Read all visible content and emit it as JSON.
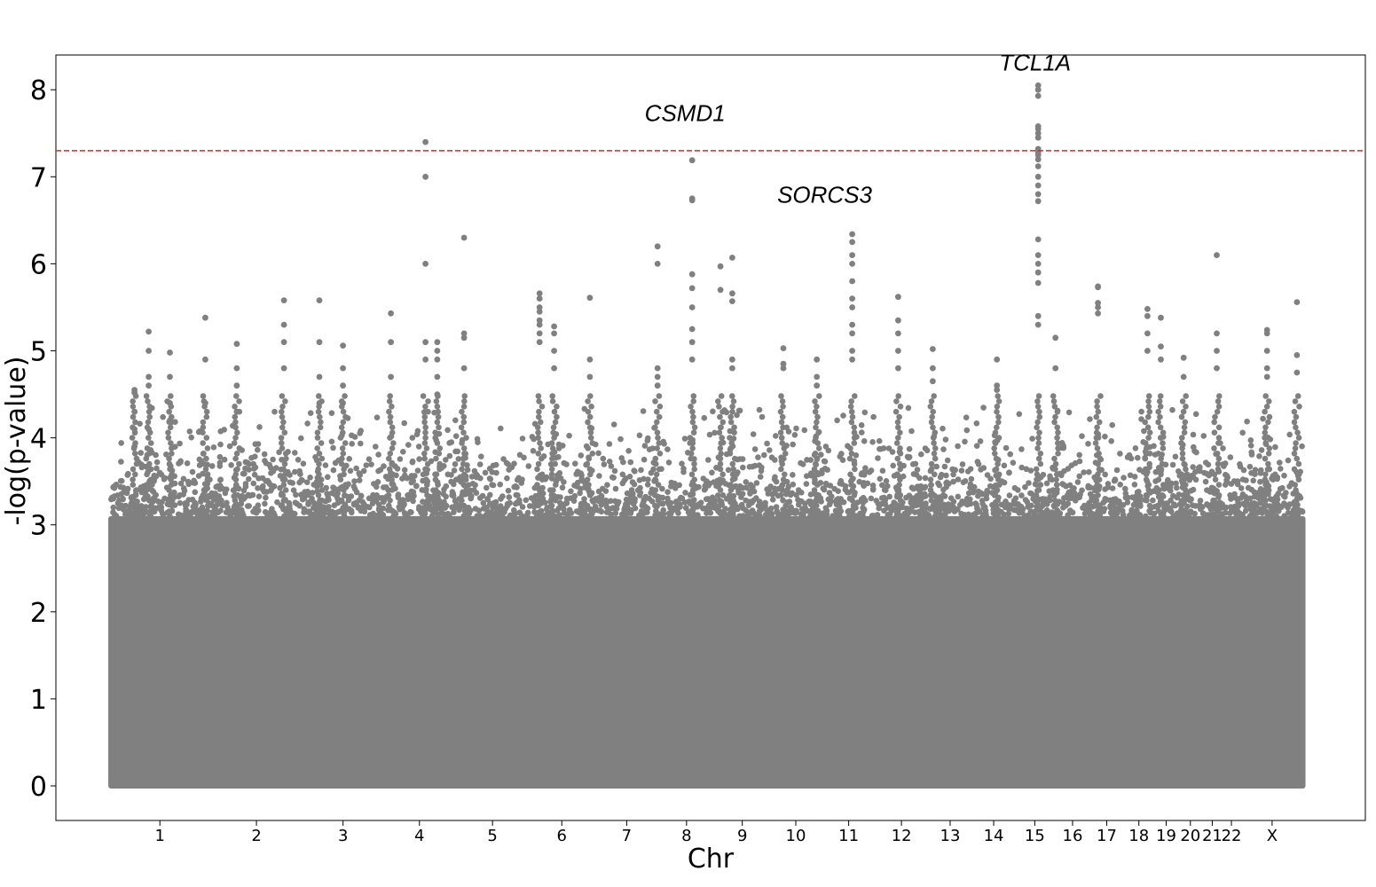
{
  "chart_data": {
    "type": "scatter",
    "subtype": "manhattan",
    "xlabel": "Chr",
    "ylabel": "-log(p-value)",
    "ylim": [
      0,
      8.4
    ],
    "yticks": [
      "0",
      "1",
      "2",
      "3",
      "4",
      "5",
      "6",
      "7",
      "8"
    ],
    "marker_color": "#808080",
    "threshold": {
      "value": 7.3,
      "color": "#d62728",
      "style": "dashed"
    },
    "background_band_top": 3.1,
    "chromosomes": [
      {
        "label": "1",
        "start": 0.0,
        "end": 248.9
      },
      {
        "label": "2",
        "start": 248.9,
        "end": 491.1
      },
      {
        "label": "3",
        "start": 491.1,
        "end": 689.4
      },
      {
        "label": "4",
        "start": 689.4,
        "end": 879.6
      },
      {
        "label": "5",
        "start": 879.6,
        "end": 1061.1
      },
      {
        "label": "6",
        "start": 1061.1,
        "end": 1231.9
      },
      {
        "label": "7",
        "start": 1231.9,
        "end": 1391.2
      },
      {
        "label": "8",
        "start": 1391.2,
        "end": 1536.3
      },
      {
        "label": "9",
        "start": 1536.3,
        "end": 1674.7
      },
      {
        "label": "10",
        "start": 1674.7,
        "end": 1808.5
      },
      {
        "label": "11",
        "start": 1808.5,
        "end": 1943.6
      },
      {
        "label": "12",
        "start": 1943.6,
        "end": 2076.9
      },
      {
        "label": "13",
        "start": 2076.9,
        "end": 2191.3
      },
      {
        "label": "14",
        "start": 2191.3,
        "end": 2298.3
      },
      {
        "label": "15",
        "start": 2298.3,
        "end": 2400.3
      },
      {
        "label": "16",
        "start": 2400.3,
        "end": 2490.6
      },
      {
        "label": "17",
        "start": 2490.6,
        "end": 2573.9
      },
      {
        "label": "18",
        "start": 2573.9,
        "end": 2654.2
      },
      {
        "label": "19",
        "start": 2654.2,
        "end": 2712.8
      },
      {
        "label": "20",
        "start": 2712.8,
        "end": 2777.3
      },
      {
        "label": "21",
        "start": 2777.3,
        "end": 2824.0
      },
      {
        "label": "22",
        "start": 2824.0,
        "end": 2874.8
      },
      {
        "label": "X",
        "start": 2874.8,
        "end": 3031.0
      }
    ],
    "xlim": [
      -140,
      3190
    ],
    "peaks": [
      {
        "x": 60,
        "y": [
          4.52,
          4.55,
          4.3,
          4.1,
          3.9
        ]
      },
      {
        "x": 96,
        "y": [
          5.22,
          5.0,
          4.7,
          4.6,
          4.1
        ]
      },
      {
        "x": 150,
        "y": [
          4.98,
          4.7,
          4.4,
          4.2
        ]
      },
      {
        "x": 240,
        "y": [
          5.38,
          4.9,
          4.4
        ]
      },
      {
        "x": 320,
        "y": [
          5.08,
          4.8,
          4.6,
          4.3
        ]
      },
      {
        "x": 440,
        "y": [
          5.58,
          5.3,
          5.1,
          4.8
        ]
      },
      {
        "x": 530,
        "y": [
          5.58,
          5.1,
          4.7,
          4.4
        ]
      },
      {
        "x": 590,
        "y": [
          5.06,
          4.8,
          4.6,
          4.4
        ]
      },
      {
        "x": 712,
        "y": [
          5.43,
          5.1,
          4.7
        ]
      },
      {
        "x": 800,
        "y": [
          7.4,
          7.0,
          6.0,
          5.1,
          4.9
        ]
      },
      {
        "x": 830,
        "y": [
          5.1,
          5.0,
          4.9,
          4.7,
          4.5
        ]
      },
      {
        "x": 898,
        "y": [
          6.3,
          5.2,
          5.15,
          4.8
        ]
      },
      {
        "x": 1090,
        "y": [
          5.66,
          5.6,
          5.5,
          5.45,
          5.35,
          5.3,
          5.2,
          5.1
        ]
      },
      {
        "x": 1127,
        "y": [
          5.28,
          5.2,
          5.0,
          4.8
        ]
      },
      {
        "x": 1218,
        "y": [
          5.61,
          4.9,
          4.7
        ]
      },
      {
        "x": 1390,
        "y": [
          6.2,
          6.0,
          4.8,
          4.7,
          4.6
        ]
      },
      {
        "x": 1478,
        "y": [
          7.19,
          6.75,
          6.73,
          5.88,
          5.72,
          5.5,
          5.25,
          5.1,
          4.9
        ]
      },
      {
        "x": 1550,
        "y": [
          5.97,
          5.7
        ]
      },
      {
        "x": 1580,
        "y": [
          6.07,
          5.66,
          5.57,
          4.9,
          4.8
        ]
      },
      {
        "x": 1710,
        "y": [
          5.03,
          4.85,
          4.8
        ]
      },
      {
        "x": 1795,
        "y": [
          4.9,
          4.7,
          4.6
        ]
      },
      {
        "x": 1885,
        "y": [
          6.34,
          6.25,
          6.1,
          6.0,
          5.8,
          5.6,
          5.5,
          5.3,
          5.2,
          5.0,
          4.9
        ]
      },
      {
        "x": 2002,
        "y": [
          5.62,
          5.35,
          5.2,
          5.0,
          4.8
        ]
      },
      {
        "x": 2090,
        "y": [
          5.02,
          4.8,
          4.65
        ]
      },
      {
        "x": 2253,
        "y": [
          4.9,
          4.6,
          4.55
        ]
      },
      {
        "x": 2358,
        "y": [
          8.05,
          8.0,
          7.93,
          7.58,
          7.55,
          7.5,
          7.45,
          7.32,
          7.3,
          7.28,
          7.25,
          7.2,
          7.12,
          7.0,
          6.9,
          6.8,
          6.72,
          6.28,
          6.1,
          6.0,
          5.9,
          5.78,
          5.4,
          5.3
        ]
      },
      {
        "x": 2402,
        "y": [
          5.15,
          4.8
        ]
      },
      {
        "x": 2510,
        "y": [
          5.74,
          5.73,
          5.55,
          5.5,
          5.43
        ]
      },
      {
        "x": 2636,
        "y": [
          5.48,
          5.4,
          5.2,
          5.0
        ]
      },
      {
        "x": 2670,
        "y": [
          5.38,
          5.05,
          4.9
        ]
      },
      {
        "x": 2728,
        "y": [
          4.92,
          4.7
        ]
      },
      {
        "x": 2812,
        "y": [
          6.1,
          5.2,
          5.0,
          4.8
        ]
      },
      {
        "x": 2940,
        "y": [
          5.24,
          5.2,
          5.0,
          4.8,
          4.7
        ]
      },
      {
        "x": 3016,
        "y": [
          5.56,
          4.95,
          4.75
        ]
      }
    ],
    "annotations": [
      {
        "text": "TCL1A",
        "x": 2350,
        "y": 8.22
      },
      {
        "text": "CSMD1",
        "x": 1460,
        "y": 7.64
      },
      {
        "text": "SORCS3",
        "x": 1815,
        "y": 6.7
      }
    ]
  }
}
